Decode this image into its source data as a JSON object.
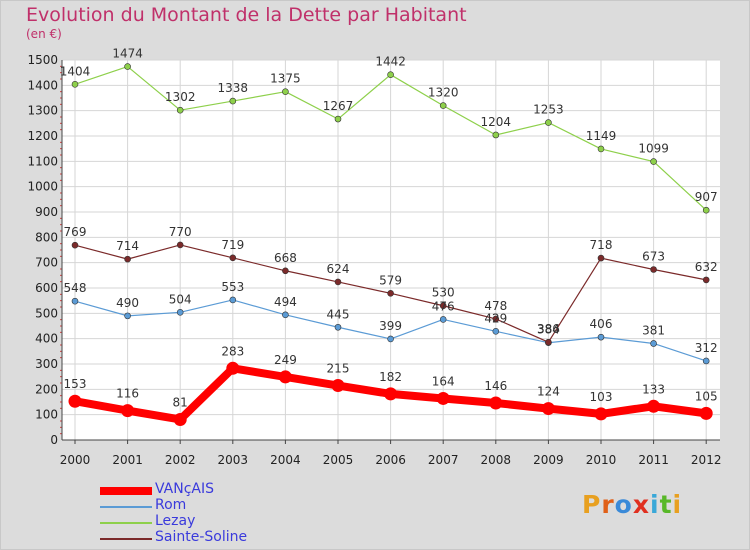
{
  "title": "Evolution du Montant de la Dette par Habitant",
  "subtitle": "(en €)",
  "logo": {
    "text": "Proxiti",
    "letter_colors": [
      "#e8a020",
      "#e06018",
      "#3a8ad8",
      "#e03020",
      "#3aa8d8",
      "#58b828",
      "#e8a020"
    ]
  },
  "chart_data": {
    "type": "line",
    "title": "Evolution du Montant de la Dette par Habitant",
    "ylabel": "(en €)",
    "x": [
      "2000",
      "2001",
      "2002",
      "2003",
      "2004",
      "2005",
      "2006",
      "2007",
      "2008",
      "2009",
      "2010",
      "2011",
      "2012"
    ],
    "ylim": [
      0,
      1500
    ],
    "yticks": [
      0,
      100,
      200,
      300,
      400,
      500,
      600,
      700,
      800,
      900,
      1000,
      1100,
      1200,
      1300,
      1400,
      1500
    ],
    "grid": true,
    "legend": "bottom-left",
    "series": [
      {
        "name": "VANçAIS",
        "color": "#ff0000",
        "values": [
          153,
          116,
          81,
          283,
          249,
          215,
          182,
          164,
          146,
          124,
          103,
          133,
          105
        ]
      },
      {
        "name": "Rom",
        "color": "#5b9bd5",
        "values": [
          548,
          490,
          504,
          553,
          494,
          445,
          399,
          476,
          429,
          384,
          406,
          381,
          312
        ]
      },
      {
        "name": "Lezay",
        "color": "#8ed04b",
        "values": [
          1404,
          1474,
          1302,
          1338,
          1375,
          1267,
          1442,
          1320,
          1204,
          1253,
          1149,
          1099,
          907
        ]
      },
      {
        "name": "Sainte-Soline",
        "color": "#7b2a2a",
        "values": [
          769,
          714,
          770,
          719,
          668,
          624,
          579,
          530,
          478,
          386,
          718,
          673,
          632
        ]
      }
    ]
  }
}
